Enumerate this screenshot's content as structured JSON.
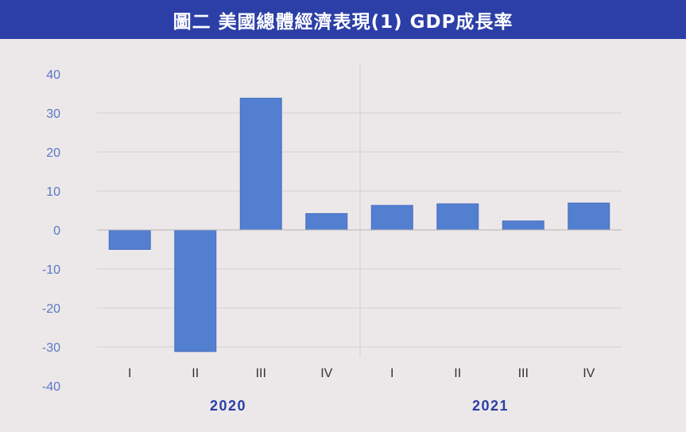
{
  "header": {
    "title": "圖二  美國總體經濟表現(1) GDP成長率"
  },
  "colors": {
    "bar": "#537fd1",
    "header_bg": "#2b3fa6",
    "background": "#ece8e9",
    "tick_label": "#5a78c4",
    "grid": "#d4d0d1"
  },
  "chart_data": {
    "type": "bar",
    "title": "",
    "xlabel": "",
    "ylabel": "",
    "ylim": [
      -40,
      40
    ],
    "yticks": [
      "40",
      "30",
      "20",
      "10",
      "0",
      "-10",
      "-20",
      "-30",
      "-40"
    ],
    "grid": true,
    "categories": [
      "I",
      "II",
      "III",
      "IV",
      "I",
      "II",
      "III",
      "IV"
    ],
    "groups": [
      {
        "label": "2020",
        "count": 4
      },
      {
        "label": "2021",
        "count": 4
      }
    ],
    "values": [
      -5.0,
      -31.2,
      33.8,
      4.2,
      6.3,
      6.7,
      2.3,
      6.9
    ]
  }
}
